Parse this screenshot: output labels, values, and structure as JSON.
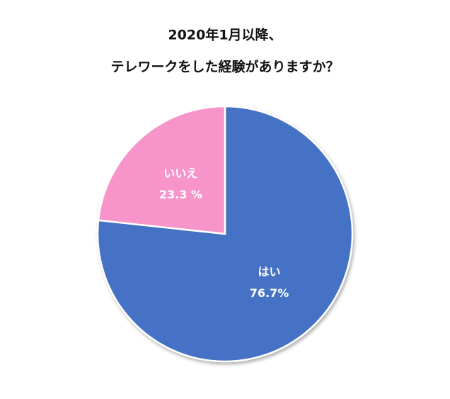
{
  "chart_data": {
    "type": "pie",
    "title_lines": [
      "2020年1月以降、",
      "テレワークをした経験がありますか？"
    ],
    "categories": [
      "はい",
      "いいえ"
    ],
    "values": [
      76.7,
      23.3
    ],
    "value_labels": [
      "76.7%",
      "23.3 %"
    ],
    "colors": [
      "#4472c4",
      "#f795cb"
    ]
  }
}
